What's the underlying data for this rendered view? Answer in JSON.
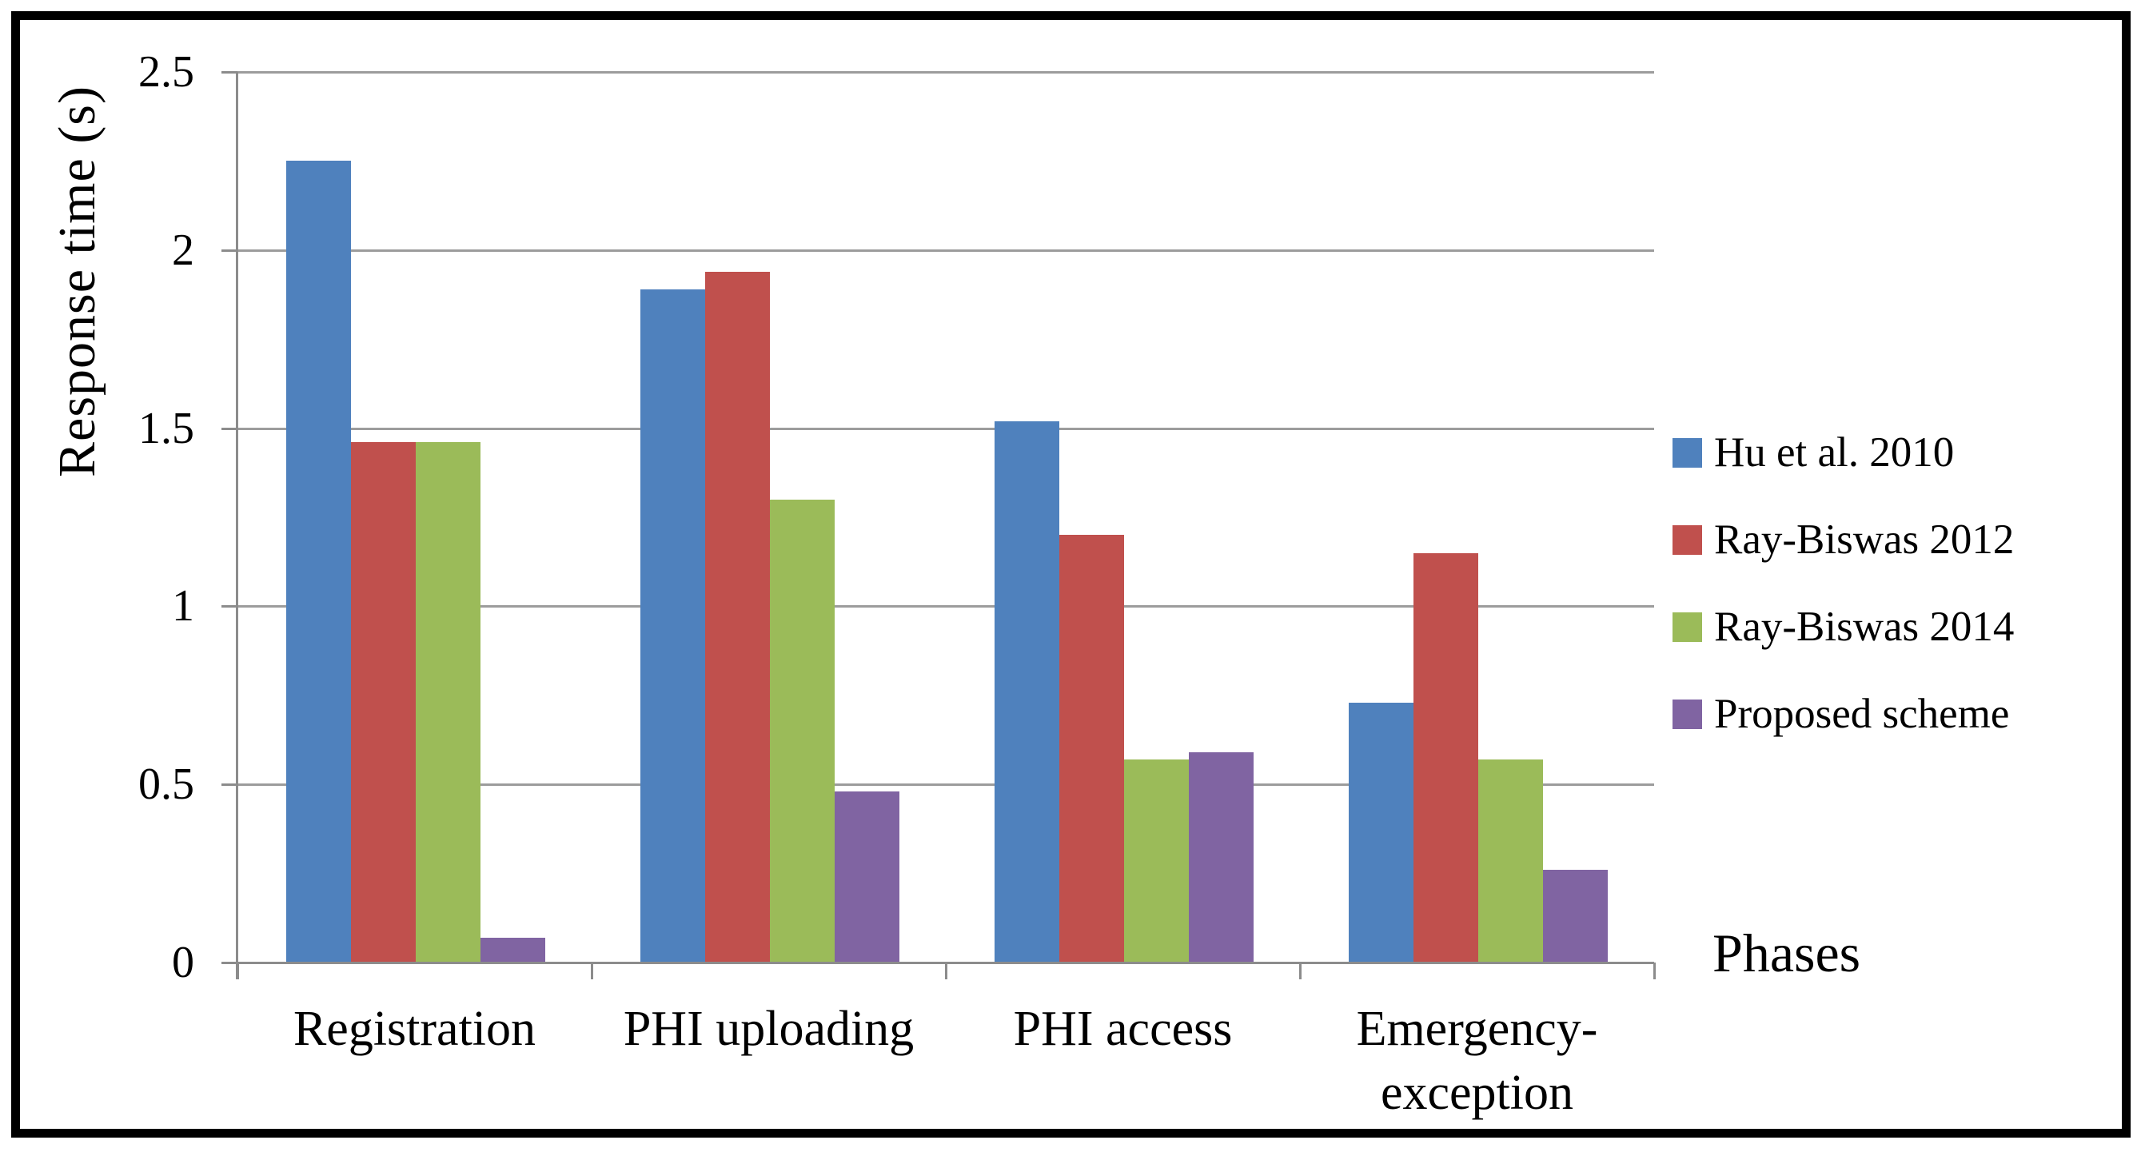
{
  "chart_data": {
    "type": "bar",
    "title": "",
    "xlabel": "Phases",
    "ylabel": "Response time (s)",
    "categories": [
      "Registration",
      "PHI uploading",
      "PHI access",
      "Emergency-exception"
    ],
    "series": [
      {
        "name": "Hu et al. 2010",
        "color": "#4F81BD",
        "values": [
          2.25,
          1.89,
          1.52,
          0.73
        ]
      },
      {
        "name": "Ray-Biswas 2012",
        "color": "#C0504D",
        "values": [
          1.46,
          1.94,
          1.2,
          1.15
        ]
      },
      {
        "name": "Ray-Biswas 2014",
        "color": "#9BBB59",
        "values": [
          1.46,
          1.3,
          0.57,
          0.57
        ]
      },
      {
        "name": "Proposed scheme",
        "color": "#8064A2",
        "values": [
          0.07,
          0.48,
          0.59,
          0.26
        ]
      }
    ],
    "ylim": [
      0,
      2.5
    ],
    "ytick_step": 0.5,
    "ytick_labels": [
      "0",
      "0.5",
      "1",
      "1.5",
      "2",
      "2.5"
    ],
    "grid": true,
    "legend_position": "right"
  },
  "style_colors": {
    "grid": "#9c9c9c",
    "axis": "#8c8c8c",
    "text": "#000000",
    "frame_border": "#000000",
    "background": "#ffffff"
  }
}
